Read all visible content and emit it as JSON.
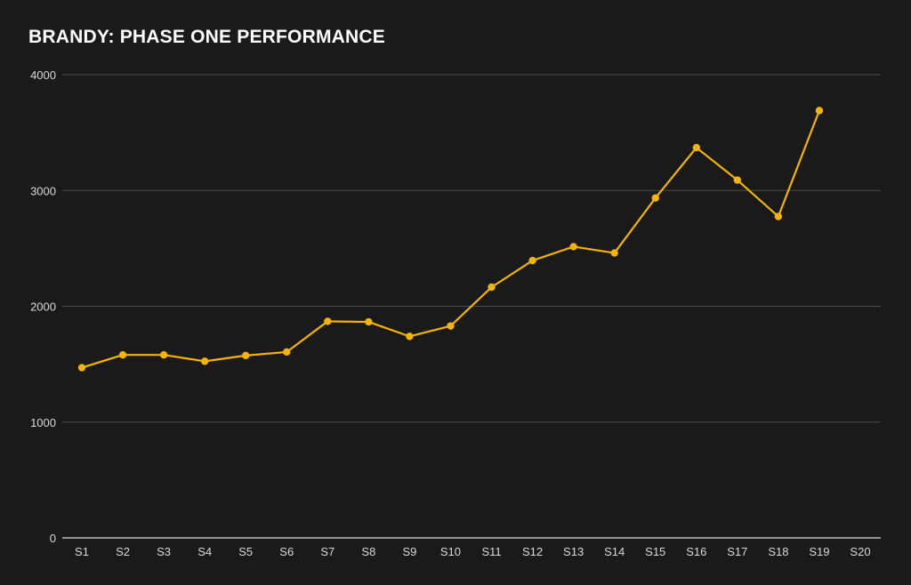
{
  "chart_data": {
    "type": "line",
    "title": "BRANDY: PHASE ONE PERFORMANCE",
    "xlabel": "",
    "ylabel": "",
    "categories": [
      "S1",
      "S2",
      "S3",
      "S4",
      "S5",
      "S6",
      "S7",
      "S8",
      "S9",
      "S10",
      "S11",
      "S12",
      "S13",
      "S14",
      "S15",
      "S16",
      "S17",
      "S18",
      "S19",
      "S20"
    ],
    "series": [
      {
        "values": [
          1470,
          1580,
          1580,
          1525,
          1575,
          1605,
          1870,
          1865,
          1740,
          1830,
          2165,
          2395,
          2515,
          2460,
          2935,
          3370,
          3090,
          2775,
          3690,
          null
        ]
      }
    ],
    "ylim": [
      0,
      4000
    ],
    "yticks": [
      0,
      1000,
      2000,
      3000,
      4000
    ],
    "grid": true,
    "legend": "none",
    "colors": {
      "background": "#1a1a1a",
      "line": "#f4b400",
      "grid": "#4a4a4a",
      "axis": "#bdbdbd",
      "text": "#d9d9d9",
      "title": "#ffffff"
    }
  }
}
